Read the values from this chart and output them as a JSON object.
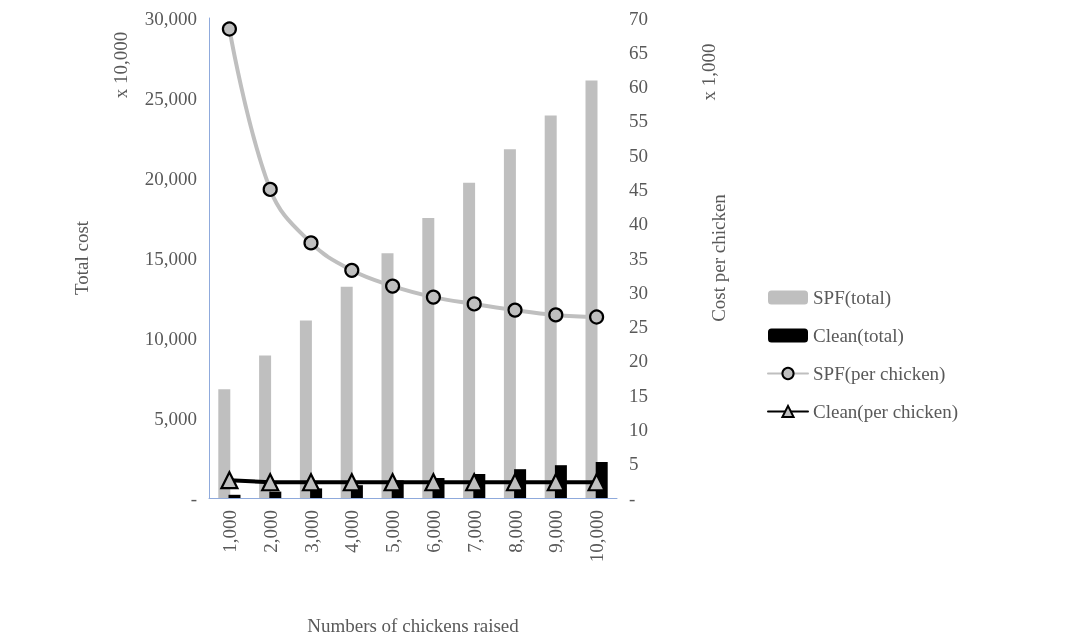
{
  "chart_data": {
    "type": "bar",
    "xlabel": "Numbers of chickens raised",
    "ylabel": "Total cost",
    "y2label": "Cost per chicken",
    "annotations": [
      "x 10,000",
      "x 1,000"
    ],
    "categories": [
      "1,000",
      "2,000",
      "3,000",
      "4,000",
      "5,000",
      "6,000",
      "7,000",
      "8,000",
      "9,000",
      "10,000"
    ],
    "series": [
      {
        "name": "SPF(total)",
        "color": "#bfbfbf",
        "values": [
          6800,
          8900,
          11100,
          13200,
          15300,
          17500,
          19700,
          21800,
          23900,
          26100
        ]
      },
      {
        "name": "Clean(total)",
        "color": "#000000",
        "values": [
          200,
          400,
          600,
          800,
          1100,
          1250,
          1500,
          1800,
          2050,
          2250
        ]
      },
      {
        "name": "SPF(per chicken)",
        "type": "line",
        "axis": "y2",
        "marker": "circle",
        "color": "#bfbfbf",
        "values": [
          68.4,
          45.0,
          37.2,
          33.2,
          30.9,
          29.3,
          28.3,
          27.4,
          26.7,
          26.4
        ]
      },
      {
        "name": "Clean(per chicken)",
        "type": "line",
        "axis": "y2",
        "marker": "triangle",
        "color": "#000000",
        "values": [
          2.6,
          2.3,
          2.3,
          2.3,
          2.3,
          2.3,
          2.3,
          2.3,
          2.3,
          2.3
        ]
      }
    ],
    "ylim": [
      0,
      30000
    ],
    "yticks": [
      {
        "value": 0,
        "label": "-"
      },
      {
        "value": 5000,
        "label": "5,000"
      },
      {
        "value": 10000,
        "label": "10,000"
      },
      {
        "value": 15000,
        "label": "15,000"
      },
      {
        "value": 20000,
        "label": "20,000"
      },
      {
        "value": 25000,
        "label": "25,000"
      },
      {
        "value": 30000,
        "label": "30,000"
      }
    ],
    "y2lim": [
      0,
      70
    ],
    "y2ticks": [
      {
        "value": 0,
        "label": "-"
      },
      5,
      10,
      15,
      20,
      25,
      30,
      35,
      40,
      45,
      50,
      55,
      60,
      65,
      70
    ],
    "grid": false,
    "legend": "right"
  }
}
